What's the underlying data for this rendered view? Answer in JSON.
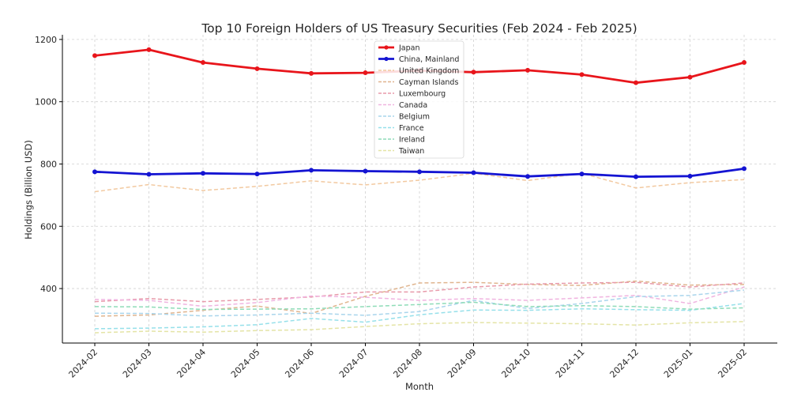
{
  "chart_data": {
    "type": "line",
    "title": "Top 10 Foreign Holders of US Treasury Securities (Feb 2024 - Feb 2025)",
    "xlabel": "Month",
    "ylabel": "Holdings (Billion USD)",
    "ylim": [
      225,
      1215
    ],
    "yticks": [
      400,
      600,
      800,
      1000,
      1200
    ],
    "grid": true,
    "legend_position": "top-center",
    "categories": [
      "2024-02",
      "2024-03",
      "2024-04",
      "2024-05",
      "2024-06",
      "2024-07",
      "2024-08",
      "2024-09",
      "2024-10",
      "2024-11",
      "2024-12",
      "2025-01",
      "2025-02"
    ],
    "series": [
      {
        "name": "Japan",
        "color": "#e8151b",
        "style": "solid-marker",
        "values": [
          1148,
          1167,
          1126,
          1106,
          1091,
          1093,
          1100,
          1095,
          1101,
          1087,
          1061,
          1079,
          1126
        ]
      },
      {
        "name": "China, Mainland",
        "color": "#1414d2",
        "style": "solid-marker",
        "values": [
          775,
          767,
          770,
          768,
          780,
          777,
          775,
          772,
          760,
          768,
          759,
          761,
          785
        ]
      },
      {
        "name": "United Kingdom",
        "color": "#f2c9a0",
        "style": "dashed",
        "values": [
          711,
          734,
          715,
          728,
          746,
          733,
          748,
          770,
          747,
          770,
          723,
          740,
          750
        ]
      },
      {
        "name": "Cayman Islands",
        "color": "#e0b58f",
        "style": "dashed",
        "values": [
          311,
          315,
          330,
          344,
          320,
          375,
          418,
          420,
          413,
          410,
          424,
          411,
          413
        ]
      },
      {
        "name": "Luxembourg",
        "color": "#e89aaa",
        "style": "dashed",
        "values": [
          358,
          368,
          358,
          365,
          373,
          389,
          389,
          405,
          414,
          418,
          420,
          405,
          418
        ]
      },
      {
        "name": "Canada",
        "color": "#f0b4e0",
        "style": "dashed",
        "values": [
          365,
          362,
          343,
          355,
          376,
          372,
          362,
          368,
          362,
          370,
          378,
          352,
          405
        ]
      },
      {
        "name": "Belgium",
        "color": "#a9d5ec",
        "style": "dashed",
        "values": [
          321,
          320,
          312,
          315,
          321,
          314,
          326,
          362,
          336,
          352,
          374,
          378,
          395
        ]
      },
      {
        "name": "France",
        "color": "#96e0ea",
        "style": "dashed",
        "values": [
          271,
          273,
          277,
          284,
          304,
          292,
          316,
          331,
          330,
          335,
          332,
          330,
          352
        ]
      },
      {
        "name": "Ireland",
        "color": "#8fdcb8",
        "style": "dashed",
        "values": [
          342,
          341,
          333,
          334,
          335,
          342,
          349,
          356,
          342,
          345,
          342,
          334,
          338
        ]
      },
      {
        "name": "Taiwan",
        "color": "#e4e4a6",
        "style": "dashed",
        "values": [
          258,
          263,
          260,
          265,
          268,
          278,
          287,
          291,
          289,
          287,
          283,
          290,
          294
        ]
      }
    ]
  }
}
